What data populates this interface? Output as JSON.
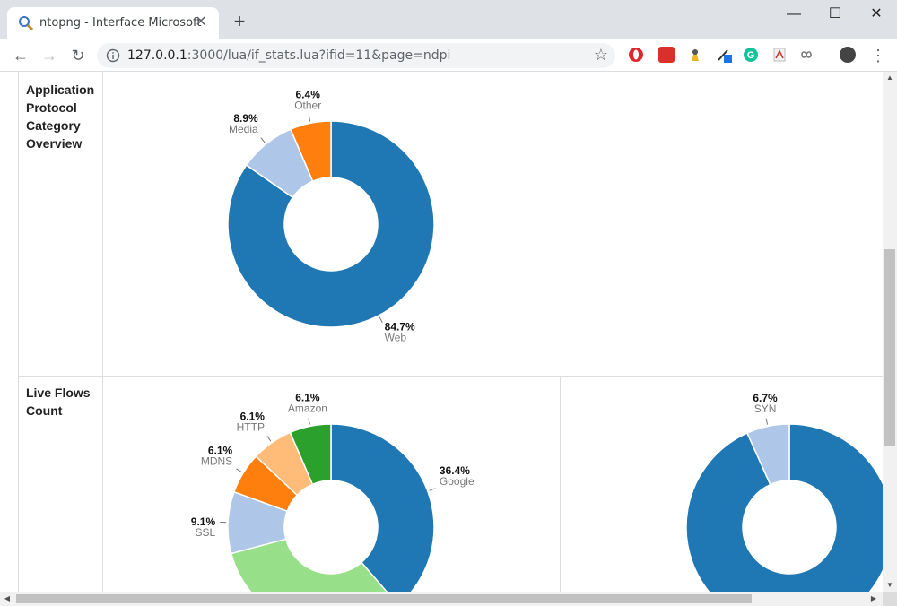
{
  "browser": {
    "tab_title": "ntopng - Interface Microsoft",
    "url_host": "127.0.0.1",
    "url_rest": ":3000/lua/if_stats.lua?ifid=11&page=ndpi",
    "icons": [
      "search-icon",
      "close-icon",
      "plus-icon",
      "minimize-icon",
      "maximize-icon",
      "window-close-icon",
      "back-icon",
      "forward-icon",
      "reload-icon",
      "info-icon",
      "star-icon",
      "menu-icon"
    ]
  },
  "sections": [
    {
      "label_lines": [
        "Application",
        "Protocol",
        "Category",
        "Overview"
      ]
    },
    {
      "label_lines": [
        "Live Flows",
        "Count"
      ]
    }
  ],
  "chart_data": [
    {
      "type": "pie",
      "donut": true,
      "slices": [
        {
          "label": "Web",
          "value": 84.7,
          "pct": "84.7%",
          "color": "#1f77b4"
        },
        {
          "label": "Media",
          "value": 8.9,
          "pct": "8.9%",
          "color": "#aec7e8"
        },
        {
          "label": "Other",
          "value": 6.4,
          "pct": "6.4%",
          "color": "#ff7f0e"
        }
      ]
    },
    {
      "type": "pie",
      "donut": true,
      "slices": [
        {
          "label": "Google",
          "value": 36.4,
          "pct": "36.4%",
          "color": "#1f77b4"
        },
        {
          "label": "",
          "value": 30.3,
          "pct": "",
          "color": "#98df8a"
        },
        {
          "label": "SSL",
          "value": 9.1,
          "pct": "9.1%",
          "color": "#aec7e8"
        },
        {
          "label": "MDNS",
          "value": 6.1,
          "pct": "6.1%",
          "color": "#ff7f0e"
        },
        {
          "label": "HTTP",
          "value": 6.1,
          "pct": "6.1%",
          "color": "#ffbb78"
        },
        {
          "label": "Amazon",
          "value": 6.1,
          "pct": "6.1%",
          "color": "#2ca02c"
        }
      ]
    },
    {
      "type": "pie",
      "donut": true,
      "slices": [
        {
          "label": "",
          "value": 93.3,
          "pct": "",
          "color": "#1f77b4"
        },
        {
          "label": "SYN",
          "value": 6.7,
          "pct": "6.7%",
          "color": "#aec7e8"
        }
      ]
    }
  ]
}
